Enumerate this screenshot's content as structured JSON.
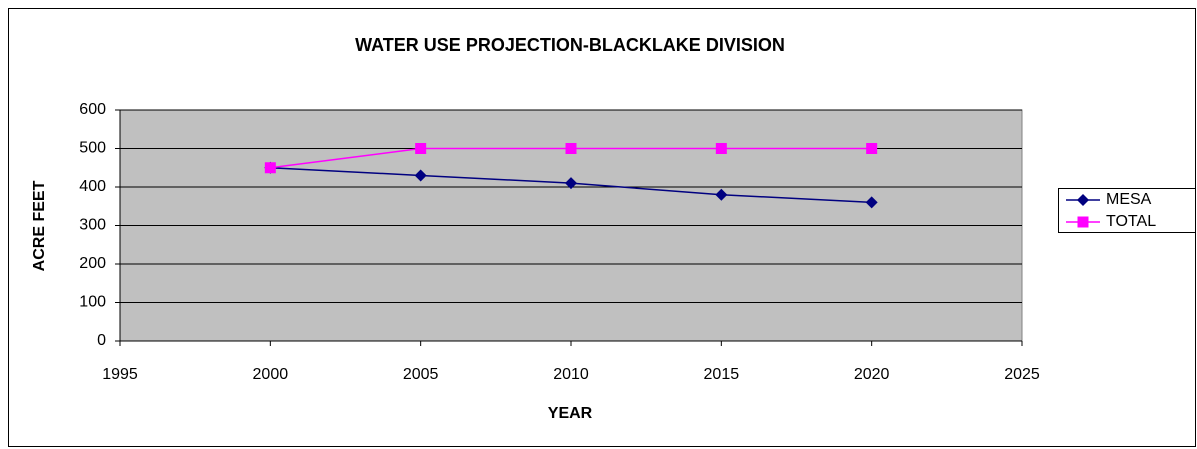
{
  "chart_data": {
    "type": "line",
    "title": "WATER USE PROJECTION-BLACKLAKE DIVISION",
    "x_label": "YEAR",
    "y_label": "ACRE FEET",
    "x": [
      2000,
      2005,
      2010,
      2015,
      2020
    ],
    "series": [
      {
        "name": "MESA",
        "color": "#000080",
        "marker": "diamond",
        "values": [
          450,
          430,
          410,
          380,
          360
        ]
      },
      {
        "name": "TOTAL",
        "color": "#ff00ff",
        "marker": "square",
        "values": [
          450,
          500,
          500,
          500,
          500
        ]
      }
    ],
    "xlim": [
      1995,
      2025
    ],
    "xticks": [
      1995,
      2000,
      2005,
      2010,
      2015,
      2020,
      2025
    ],
    "ylim": [
      0,
      600
    ],
    "yticks": [
      0,
      100,
      200,
      300,
      400,
      500,
      600
    ],
    "grid": true,
    "legend": "right",
    "plot_background": "#c0c0c0"
  }
}
